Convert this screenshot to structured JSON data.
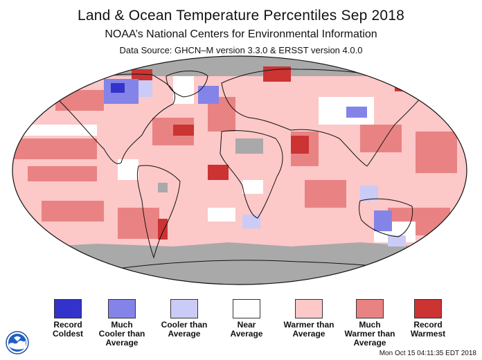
{
  "header": {
    "title": "Land & Ocean Temperature Percentiles Sep 2018",
    "subtitle": "NOAA’s National Centers for Environmental Information",
    "data_source": "Data Source: GHCN–M version 3.3.0 & ERSST version 4.0.0"
  },
  "colors": {
    "record_coldest": "#3333cc",
    "much_cooler": "#8484e8",
    "cooler": "#cbcbf7",
    "near_average": "#ffffff",
    "warmer": "#fcc8c8",
    "much_warmer": "#e98383",
    "record_warmest": "#cc3333",
    "no_data": "#a9a9a9"
  },
  "legend": {
    "items": [
      {
        "label": "Record\nColdest",
        "color": "#3333cc"
      },
      {
        "label": "Much\nCooler than\nAverage",
        "color": "#8484e8"
      },
      {
        "label": "Cooler than\nAverage",
        "color": "#cbcbf7"
      },
      {
        "label": "Near\nAverage",
        "color": "#ffffff"
      },
      {
        "label": "Warmer than\nAverage",
        "color": "#fcc8c8"
      },
      {
        "label": "Much\nWarmer than\nAverage",
        "color": "#e98383"
      },
      {
        "label": "Record\nWarmest",
        "color": "#cc3333"
      }
    ]
  },
  "footer": {
    "timestamp": "Mon Oct 15 04:11:35 EDT 2018",
    "logo_icon": "noaa-logo-icon"
  }
}
